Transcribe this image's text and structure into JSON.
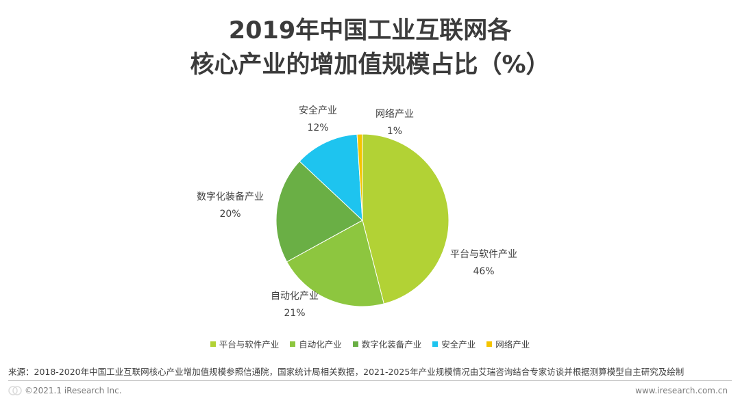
{
  "title": {
    "line1": "2019年中国工业互联网各",
    "line2": "核心产业的增加值规模占比（%）"
  },
  "chart_data": {
    "type": "pie",
    "categories": [
      "平台与软件产业",
      "自动化产业",
      "数字化装备产业",
      "安全产业",
      "网络产业"
    ],
    "values": [
      46,
      21,
      20,
      12,
      1
    ],
    "value_labels": [
      "46%",
      "21%",
      "20%",
      "12%",
      "1%"
    ],
    "colors": [
      "#b2d235",
      "#8dc63f",
      "#6aaf45",
      "#1ec4ef",
      "#f5c400"
    ],
    "start_angle_deg": 0,
    "direction": "clockwise",
    "legend_position": "bottom"
  },
  "footer": {
    "source": "来源：2018-2020年中国工业互联网核心产业增加值规模参照信通院，国家统计局相关数据，2021-2025年产业规模情况由艾瑞咨询结合专家访谈并根据测算模型自主研究及绘制",
    "copyright": "©2021.1 iResearch Inc.",
    "website": "www.iresearch.com.cn"
  }
}
